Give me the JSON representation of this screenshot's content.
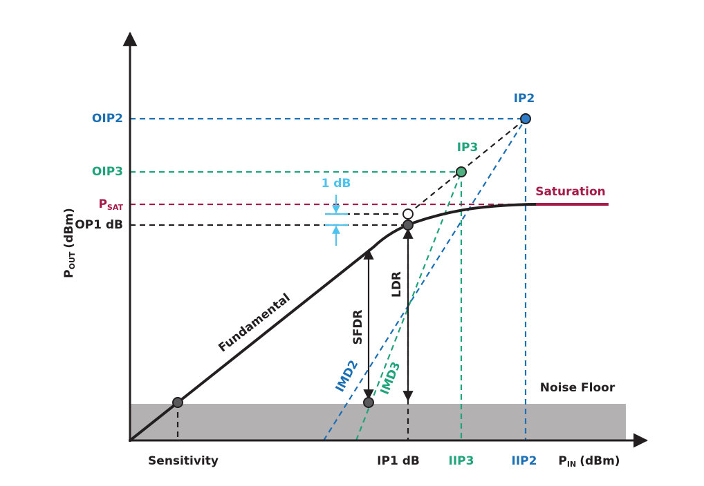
{
  "axes": {
    "y_label": {
      "main": "P",
      "sub": "OUT",
      "unit": "(dBm)"
    },
    "x_label": {
      "main": "P",
      "sub": "IN",
      "unit": "(dBm)"
    }
  },
  "y_labels": {
    "oip2": "OIP2",
    "oip3": "OIP3",
    "psat": {
      "main": "P",
      "sub": "SAT"
    },
    "op1db": "OP1 dB"
  },
  "x_labels": {
    "sensitivity": "Sensitivity",
    "ip1db": "IP1 dB",
    "iip3": "IIP3",
    "iip2": "IIP2"
  },
  "points": {
    "ip2": "IP2",
    "ip3": "IP3"
  },
  "annotations": {
    "one_db": "1 dB",
    "saturation": "Saturation",
    "fundamental": "Fundamental",
    "sfdr": "SFDR",
    "ldr": "LDR",
    "imd2": "IMD2",
    "imd3": "IMD3",
    "noise_floor": "Noise Floor"
  }
}
